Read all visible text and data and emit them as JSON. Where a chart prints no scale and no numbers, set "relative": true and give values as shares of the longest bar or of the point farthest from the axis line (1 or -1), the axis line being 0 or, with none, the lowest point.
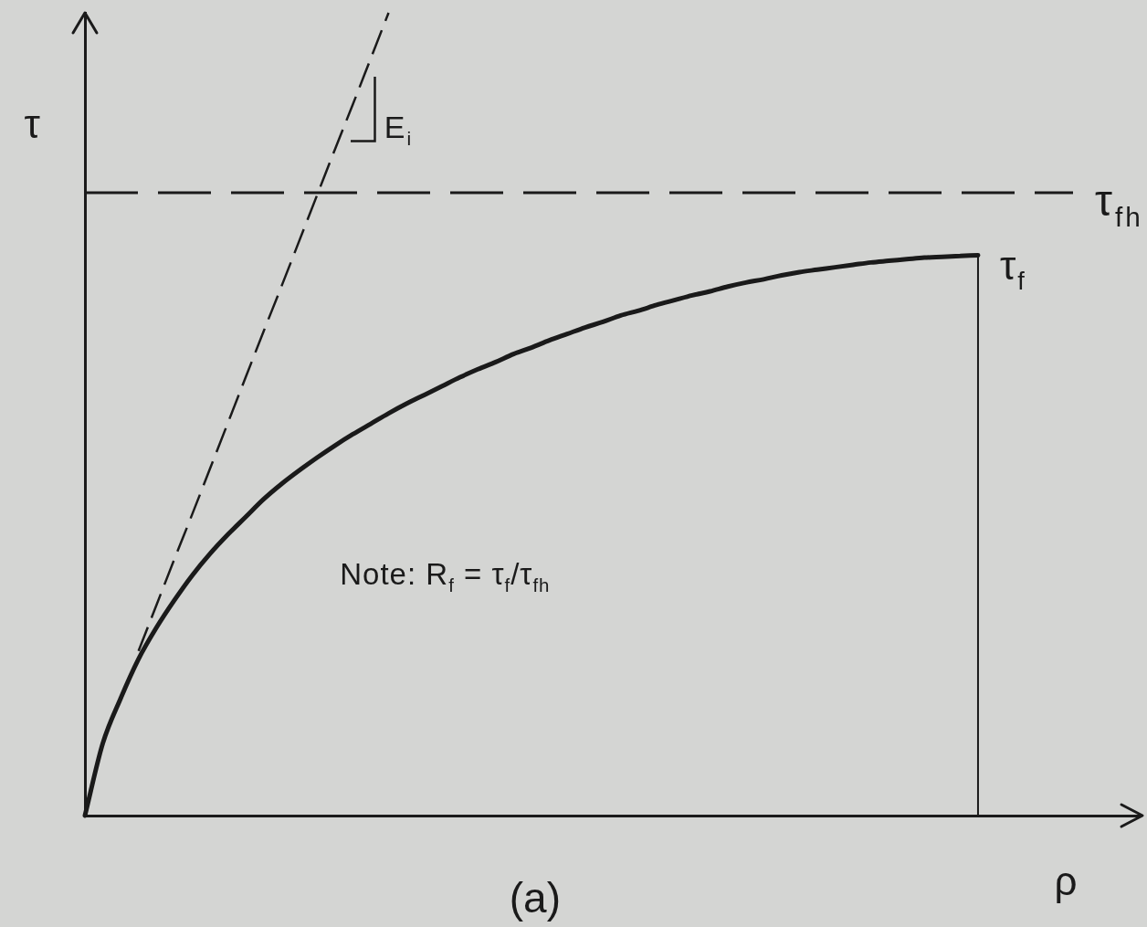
{
  "chart_data": {
    "type": "line",
    "title": "(a)",
    "xlabel": "ρ",
    "ylabel": "τ",
    "relative": true,
    "categories": [
      null,
      null,
      null,
      null,
      null,
      null,
      null,
      null,
      null,
      null,
      null,
      null,
      null,
      null,
      null,
      null,
      null,
      null,
      null,
      null,
      null,
      null,
      null,
      null,
      null,
      null,
      null,
      null,
      null,
      null,
      null,
      null,
      null,
      null,
      null,
      null,
      null,
      null,
      null,
      null,
      null,
      null,
      null,
      null,
      null,
      null,
      null,
      null,
      null,
      null,
      null,
      null,
      null,
      null,
      null,
      null,
      null,
      null,
      null,
      null
    ],
    "series": [
      {
        "color": "#1a1a1a",
        "values": [
          0,
          0.09,
          0.146,
          0.195,
          0.234,
          0.268,
          0.299,
          0.326,
          0.35,
          0.372,
          0.394,
          0.413,
          0.43,
          0.446,
          0.461,
          0.475,
          0.488,
          0.501,
          0.513,
          0.524,
          0.535,
          0.546,
          0.556,
          0.565,
          0.575,
          0.583,
          0.592,
          0.6,
          0.608,
          0.615,
          0.623,
          0.629,
          0.636,
          0.642,
          0.648,
          0.653,
          0.659,
          0.664,
          0.668,
          0.673,
          0.677,
          0.68,
          0.683,
          0.686,
          0.689,
          0.691,
          0.693,
          0.695,
          0.696,
          0.697,
          0.698,
          null,
          null,
          null,
          null,
          null,
          null,
          null,
          null,
          null
        ]
      },
      {
        "color": "#1a1a1a",
        "line_style": "dashed",
        "values": [
          null,
          null,
          null,
          0.205,
          0.262,
          0.319,
          0.375,
          0.432,
          0.489,
          0.546,
          0.603,
          0.659,
          0.716,
          0.773,
          0.83,
          0.886,
          0.943,
          1,
          null,
          null,
          null,
          null,
          null,
          null,
          null,
          null,
          null,
          null,
          null,
          null,
          null,
          null,
          null,
          null,
          null,
          null,
          null,
          null,
          null,
          null,
          null,
          null,
          null,
          null,
          null,
          null,
          null,
          null,
          null,
          null,
          null,
          null,
          null,
          null,
          null,
          null,
          null,
          null,
          null,
          null
        ]
      }
    ],
    "ref_lines": [
      {
        "axis": "y",
        "value": 0.776,
        "label": "τ$_{fh}$",
        "line_style": "dashed",
        "color": "#1a1a1a"
      }
    ],
    "annotations": [
      "Note: R$_{f}$ = τ$_{f}$/τ$_{fh}$",
      "τ$_{f}$",
      "E$_{i}$"
    ]
  }
}
